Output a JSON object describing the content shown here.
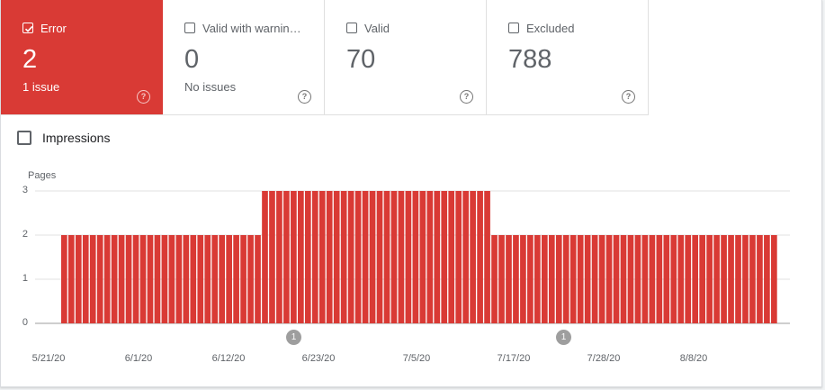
{
  "tiles": [
    {
      "label": "Error",
      "value": "2",
      "sub": "1 issue",
      "active": true
    },
    {
      "label": "Valid with warnin…",
      "value": "0",
      "sub": "No issues",
      "active": false
    },
    {
      "label": "Valid",
      "value": "70",
      "sub": "",
      "active": false
    },
    {
      "label": "Excluded",
      "value": "788",
      "sub": "",
      "active": false
    }
  ],
  "help_glyph": "?",
  "impressions_label": "Impressions",
  "colors": {
    "error": "#d93a35",
    "bar": "#d93a35",
    "grid": "#e0e0e0"
  },
  "icons": {
    "checkbox": "checkbox-icon",
    "help": "help-circle-icon",
    "annotation": "annotation-marker-icon"
  },
  "chart_data": {
    "type": "bar",
    "ylabel": "Pages",
    "ylim": [
      0,
      3
    ],
    "yticks": [
      "0",
      "1",
      "2",
      "3"
    ],
    "x_tick_labels": [
      "5/21/20",
      "6/1/20",
      "6/12/20",
      "6/23/20",
      "7/5/20",
      "7/17/20",
      "7/28/20",
      "8/8/20"
    ],
    "series": [
      {
        "values": [
          2,
          2,
          2,
          2,
          2,
          2,
          2,
          2,
          2,
          2,
          2,
          2,
          2,
          2,
          2,
          2,
          2,
          2,
          2,
          2,
          2,
          2,
          2,
          2,
          2,
          2,
          2,
          2,
          3,
          3,
          3,
          3,
          3,
          3,
          3,
          3,
          3,
          3,
          3,
          3,
          3,
          3,
          3,
          3,
          3,
          3,
          3,
          3,
          3,
          3,
          3,
          3,
          3,
          3,
          3,
          3,
          3,
          3,
          3,
          3,
          2,
          2,
          2,
          2,
          2,
          2,
          2,
          2,
          2,
          2,
          2,
          2,
          2,
          2,
          2,
          2,
          2,
          2,
          2,
          2,
          2,
          2,
          2,
          2,
          2,
          2,
          2,
          2,
          2,
          2,
          2,
          2,
          2,
          2,
          2,
          2,
          2,
          2,
          2,
          2
        ]
      }
    ],
    "annotations": [
      "1",
      "1"
    ]
  }
}
